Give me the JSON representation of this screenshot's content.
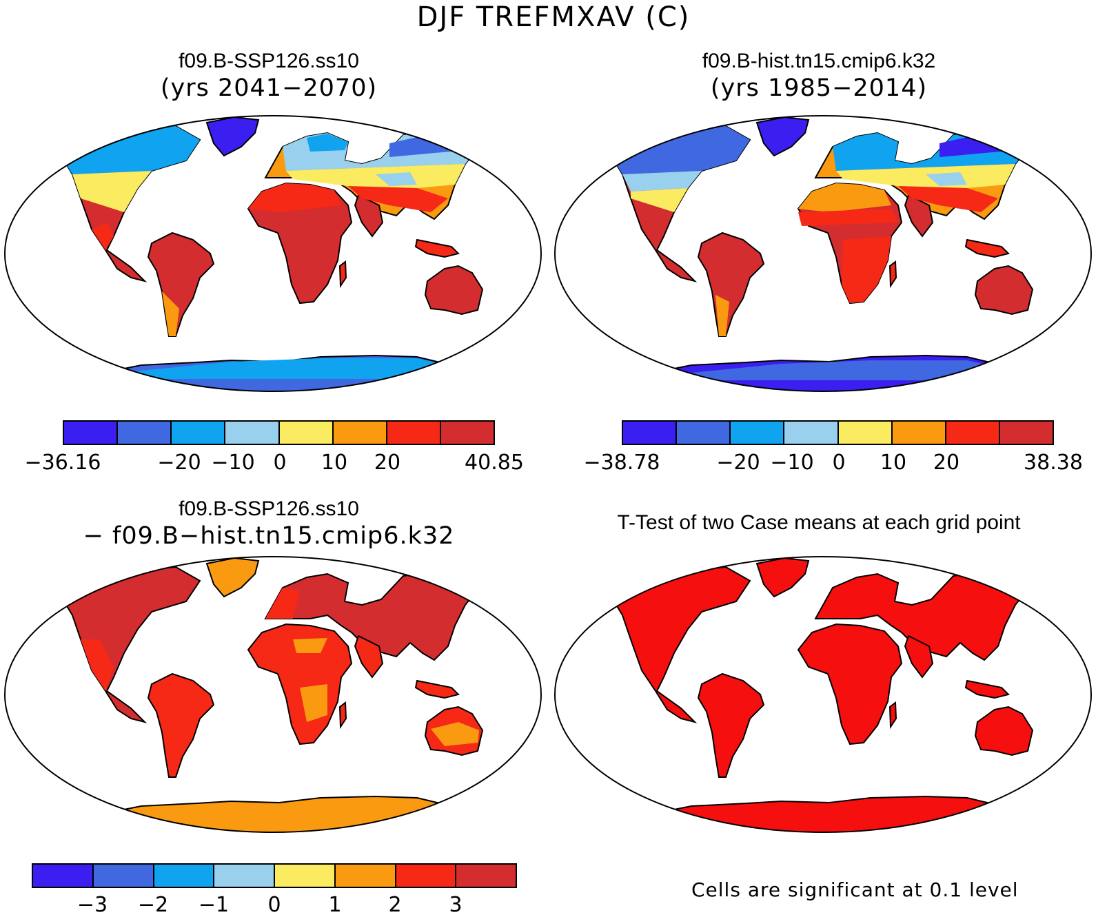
{
  "figure": {
    "title": "DJF TREFMXAV (C)",
    "panels": [
      {
        "title_line1": "f09.B-SSP126.ss10",
        "title_line2": "(yrs 2041−2070)"
      },
      {
        "title_line1": "f09.B-hist.tn15.cmip6.k32",
        "title_line2": "(yrs 1985−2014)"
      },
      {
        "title_line1": "f09.B-SSP126.ss10",
        "title_line2": "− f09.B−hist.tn15.cmip6.k32"
      },
      {
        "title_line1": "T-Test of two Case means at each grid point",
        "title_line2": ""
      }
    ],
    "note": "Cells are significant at 0.1 level"
  },
  "colorbars": [
    {
      "colors": [
        "#3b1ef0",
        "#4068e0",
        "#10a3f0",
        "#98d0ee",
        "#fbeb60",
        "#f99a10",
        "#f62816",
        "#d42d2f"
      ],
      "labels": [
        "−36.16",
        "−20",
        "−10",
        "0",
        "10",
        "20",
        "40.85"
      ]
    },
    {
      "colors": [
        "#3b1ef0",
        "#4068e0",
        "#10a3f0",
        "#98d0ee",
        "#fbeb60",
        "#f99a10",
        "#f62816",
        "#d42d2f"
      ],
      "labels": [
        "−38.78",
        "−20",
        "−10",
        "0",
        "10",
        "20",
        "38.38"
      ]
    },
    {
      "colors": [
        "#3b1ef0",
        "#4068e0",
        "#10a3f0",
        "#98d0ee",
        "#fbeb60",
        "#f99a10",
        "#f62816",
        "#d42d2f"
      ],
      "labels": [
        "−3",
        "−2",
        "−1",
        "0",
        "1",
        "2",
        "3"
      ]
    }
  ]
}
